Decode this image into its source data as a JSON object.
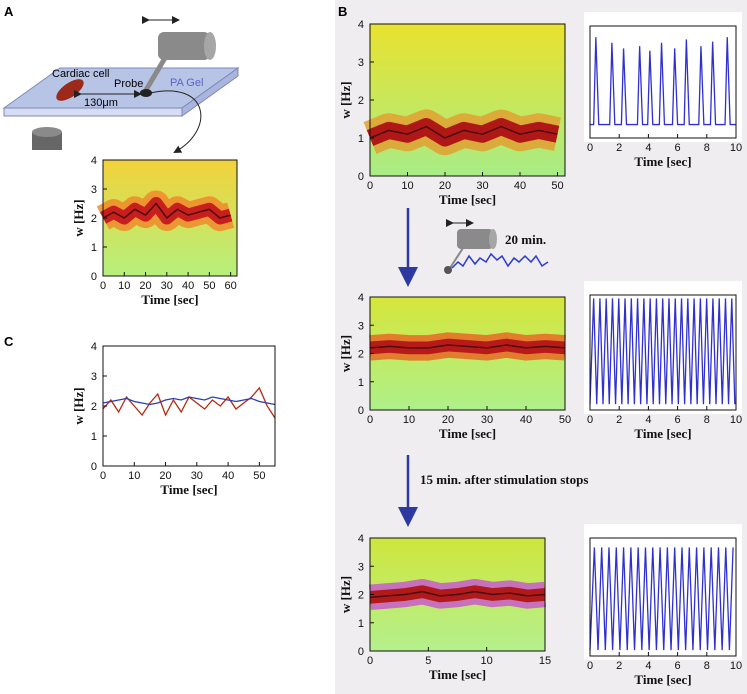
{
  "labels": {
    "panel_a": "A",
    "panel_b": "B",
    "panel_c": "C",
    "cardiac_cell": "Cardiac cell",
    "probe": "Probe",
    "pa_gel": "PA Gel",
    "distance": "130μm",
    "stim_duration": "20 min.",
    "after_stim": "15 min. after stimulation stops"
  },
  "chart_data": [
    {
      "type": "spectrogram",
      "x_label": "Time [sec]",
      "y_label": "w [Hz]",
      "xlim": [
        0,
        63
      ],
      "ylim": [
        0,
        4
      ],
      "xticks": [
        0,
        10,
        20,
        30,
        40,
        50,
        60
      ],
      "yticks": [
        0,
        1,
        2,
        3,
        4
      ],
      "x": [
        0,
        5,
        10,
        15,
        20,
        25,
        30,
        35,
        40,
        45,
        50,
        55,
        60
      ],
      "values": [
        2.0,
        2.2,
        2.0,
        2.3,
        2.1,
        2.5,
        2.0,
        2.3,
        2.1,
        2.2,
        2.3,
        2.0,
        2.1
      ],
      "colors": {
        "top": "#f2d23a",
        "bottom": "#b6f07c",
        "band": "#f08a2a",
        "core": "#c81e1e"
      }
    },
    {
      "type": "line",
      "x_label": "Time [sec]",
      "y_label": "w [Hz]",
      "xlim": [
        0,
        55
      ],
      "ylim": [
        0,
        4
      ],
      "xticks": [
        0,
        10,
        20,
        30,
        40,
        50
      ],
      "yticks": [
        0,
        1,
        2,
        3,
        4
      ],
      "x": [
        0,
        2.5,
        5,
        7.5,
        10,
        12.5,
        15,
        17.5,
        20,
        22.5,
        25,
        27.5,
        30,
        32.5,
        35,
        37.5,
        40,
        42.5,
        45,
        47.5,
        50,
        52.5,
        55
      ],
      "series": [
        {
          "color": "#b52a10",
          "values": [
            1.9,
            2.2,
            1.8,
            2.3,
            2.0,
            1.7,
            2.1,
            2.4,
            1.7,
            2.2,
            1.8,
            2.3,
            2.1,
            1.9,
            2.2,
            2.0,
            2.3,
            1.9,
            2.1,
            2.3,
            2.6,
            2.0,
            1.6
          ]
        },
        {
          "color": "#2a3fb0",
          "values": [
            2.1,
            2.15,
            2.2,
            2.25,
            2.15,
            2.1,
            2.05,
            2.1,
            2.2,
            2.25,
            2.2,
            2.3,
            2.25,
            2.2,
            2.3,
            2.25,
            2.2,
            2.15,
            2.2,
            2.25,
            2.15,
            2.1,
            2.05
          ]
        }
      ]
    },
    {
      "type": "spectrogram",
      "x_label": "Time [sec]",
      "y_label": "w [Hz]",
      "xlim": [
        0,
        52
      ],
      "ylim": [
        0,
        4
      ],
      "xticks": [
        0,
        10,
        20,
        30,
        40,
        50
      ],
      "yticks": [
        0,
        1,
        2,
        3,
        4
      ],
      "x": [
        0,
        5,
        10,
        15,
        20,
        25,
        30,
        35,
        40,
        45,
        50
      ],
      "values": [
        1.0,
        1.2,
        1.1,
        1.3,
        1.0,
        1.2,
        1.1,
        1.3,
        1.1,
        1.2,
        1.1
      ],
      "colors": {
        "top": "#e9e22e",
        "bottom": "#a8ec86",
        "band": "#e0a030",
        "core": "#b01818"
      }
    },
    {
      "type": "line",
      "x_label": "Time [sec]",
      "xlim": [
        0,
        10
      ],
      "ylim": [
        0,
        1
      ],
      "xticks": [
        0,
        2,
        4,
        6,
        8,
        10
      ],
      "color": "#3030d0",
      "x": [
        0,
        0.25,
        0.4,
        0.6,
        1.35,
        1.5,
        1.7,
        2.15,
        2.3,
        2.5,
        3.25,
        3.4,
        3.6,
        3.95,
        4.1,
        4.3,
        4.75,
        4.9,
        5.1,
        5.65,
        5.8,
        6.0,
        6.45,
        6.6,
        6.8,
        7.45,
        7.6,
        7.8,
        8.25,
        8.4,
        8.6,
        9.25,
        9.4,
        9.6,
        10
      ],
      "values": [
        0.12,
        0.12,
        0.9,
        0.12,
        0.12,
        0.85,
        0.12,
        0.12,
        0.8,
        0.12,
        0.12,
        0.82,
        0.12,
        0.12,
        0.78,
        0.12,
        0.12,
        0.85,
        0.12,
        0.12,
        0.8,
        0.12,
        0.12,
        0.88,
        0.12,
        0.12,
        0.82,
        0.12,
        0.12,
        0.86,
        0.12,
        0.12,
        0.9,
        0.12,
        0.12
      ]
    },
    {
      "type": "spectrogram",
      "x_label": "Time [sec]",
      "y_label": "w [Hz]",
      "xlim": [
        0,
        50
      ],
      "ylim": [
        0,
        4
      ],
      "xticks": [
        0,
        10,
        20,
        30,
        40,
        50
      ],
      "yticks": [
        0,
        1,
        2,
        3,
        4
      ],
      "x": [
        0,
        5,
        10,
        15,
        20,
        25,
        30,
        35,
        40,
        45,
        50
      ],
      "values": [
        2.2,
        2.25,
        2.2,
        2.2,
        2.3,
        2.25,
        2.2,
        2.3,
        2.2,
        2.25,
        2.2
      ],
      "colors": {
        "top": "#d6e63a",
        "bottom": "#aef08a",
        "band": "#e86a24",
        "core": "#b81a1a"
      }
    },
    {
      "type": "line",
      "x_label": "Time [sec]",
      "xlim": [
        0,
        10
      ],
      "ylim": [
        0,
        1
      ],
      "xticks": [
        0,
        2,
        4,
        6,
        8,
        10
      ],
      "color": "#3030d0",
      "x": [
        0,
        0.25,
        0.46,
        0.68,
        0.89,
        1.11,
        1.32,
        1.54,
        1.75,
        1.97,
        2.18,
        2.4,
        2.61,
        2.83,
        3.04,
        3.26,
        3.47,
        3.69,
        3.9,
        4.12,
        4.33,
        4.55,
        4.76,
        4.98,
        5.19,
        5.41,
        5.62,
        5.84,
        6.05,
        6.27,
        6.48,
        6.7,
        6.91,
        7.13,
        7.34,
        7.56,
        7.77,
        7.99,
        8.2,
        8.42,
        8.63,
        8.85,
        9.06,
        9.28,
        9.49,
        9.71,
        9.92
      ],
      "values": [
        0.05,
        0.97,
        0.05,
        0.97,
        0.05,
        0.97,
        0.05,
        0.97,
        0.05,
        0.97,
        0.05,
        0.97,
        0.05,
        0.97,
        0.05,
        0.97,
        0.05,
        0.97,
        0.05,
        0.97,
        0.05,
        0.97,
        0.05,
        0.97,
        0.05,
        0.97,
        0.05,
        0.97,
        0.05,
        0.97,
        0.05,
        0.97,
        0.05,
        0.97,
        0.05,
        0.97,
        0.05,
        0.97,
        0.05,
        0.97,
        0.05,
        0.97,
        0.05,
        0.97,
        0.05,
        0.97,
        0.05
      ]
    },
    {
      "type": "spectrogram",
      "x_label": "Time [sec]",
      "y_label": "w [Hz]",
      "xlim": [
        0,
        15
      ],
      "ylim": [
        0,
        4
      ],
      "xticks": [
        0,
        5,
        10,
        15
      ],
      "yticks": [
        0,
        1,
        2,
        3,
        4
      ],
      "x": [
        0,
        1.5,
        3,
        4.5,
        6,
        7.5,
        9,
        10.5,
        12,
        13.5,
        15
      ],
      "values": [
        1.9,
        1.95,
        2.0,
        2.1,
        1.95,
        2.0,
        2.1,
        2.0,
        2.05,
        1.95,
        2.0
      ],
      "colors": {
        "top": "#cfe63c",
        "bottom": "#b4f08e",
        "band": "#c85acb",
        "core": "#b01a1a"
      }
    },
    {
      "type": "line",
      "x_label": "Time [sec]",
      "xlim": [
        0,
        10
      ],
      "ylim": [
        0,
        1
      ],
      "xticks": [
        0,
        2,
        4,
        6,
        8,
        10
      ],
      "color": "#3030d0",
      "x": [
        0,
        0.3,
        0.55,
        0.8,
        1.05,
        1.3,
        1.55,
        1.8,
        2.05,
        2.3,
        2.55,
        2.8,
        3.05,
        3.3,
        3.55,
        3.8,
        4.05,
        4.3,
        4.55,
        4.8,
        5.05,
        5.3,
        5.55,
        5.8,
        6.05,
        6.3,
        6.55,
        6.8,
        7.05,
        7.3,
        7.55,
        7.8,
        8.05,
        8.3,
        8.55,
        8.8,
        9.05,
        9.3,
        9.55,
        9.8
      ],
      "values": [
        0.05,
        0.92,
        0.05,
        0.92,
        0.05,
        0.92,
        0.05,
        0.92,
        0.05,
        0.92,
        0.05,
        0.92,
        0.05,
        0.92,
        0.05,
        0.92,
        0.05,
        0.92,
        0.05,
        0.92,
        0.05,
        0.92,
        0.05,
        0.92,
        0.05,
        0.92,
        0.05,
        0.92,
        0.05,
        0.92,
        0.05,
        0.92,
        0.05,
        0.92,
        0.05,
        0.92,
        0.05,
        0.92,
        0.05,
        0.92
      ]
    }
  ]
}
